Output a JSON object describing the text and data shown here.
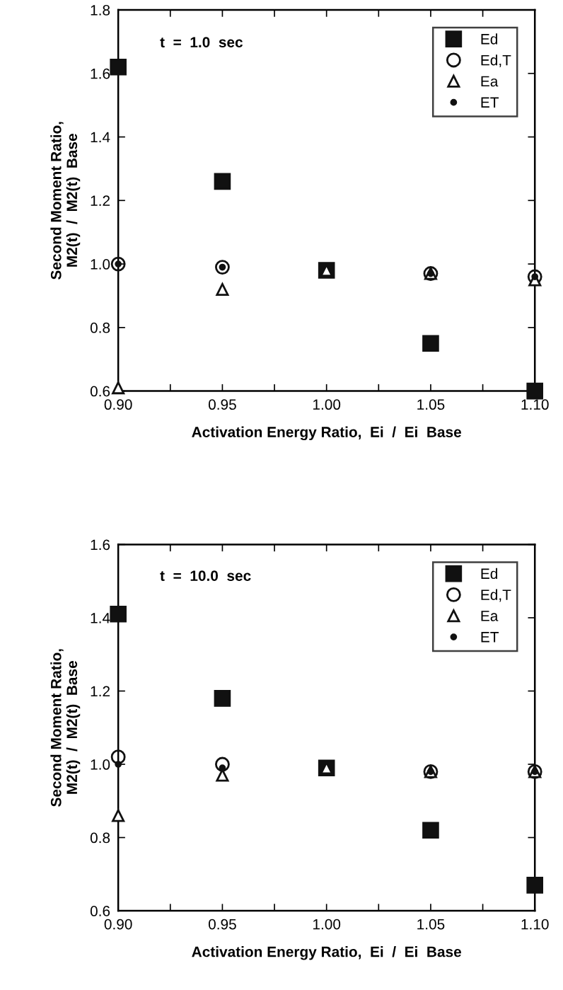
{
  "chart_data": [
    {
      "type": "scatter",
      "xlabel": "Activation Energy Ratio,  Ei  /  Ei  Base",
      "ylabel": "Second Moment Ratio,\nM2(t)  /  M2(t)  Base",
      "annotations": [
        "t  =  1.0  sec"
      ],
      "x": [
        0.9,
        0.95,
        1.0,
        1.05,
        1.1
      ],
      "xlim": [
        0.9,
        1.1
      ],
      "ylim": [
        0.6,
        1.8
      ],
      "xticks": [
        {
          "value": 0.9,
          "label": "0.90"
        },
        {
          "value": 0.925,
          "label": null
        },
        {
          "value": 0.95,
          "label": "0.95"
        },
        {
          "value": 0.975,
          "label": null
        },
        {
          "value": 1.0,
          "label": "1.00"
        },
        {
          "value": 1.025,
          "label": null
        },
        {
          "value": 1.05,
          "label": "1.05"
        },
        {
          "value": 1.075,
          "label": null
        },
        {
          "value": 1.1,
          "label": "1.10"
        }
      ],
      "yticks": [
        0.6,
        0.8,
        {
          "value": 1.0,
          "label": "1.0"
        },
        1.2,
        1.4,
        1.6,
        1.8
      ],
      "legend": "top right",
      "grid": false,
      "series": [
        {
          "name": "Ed",
          "color": "#111111",
          "marker": "square",
          "values": [
            1.62,
            1.26,
            0.98,
            0.75,
            0.6
          ]
        },
        {
          "name": "Ed,T",
          "color": "#111111",
          "marker": "circle",
          "values": [
            1.0,
            0.99,
            null,
            0.97,
            0.96
          ]
        },
        {
          "name": "Ea",
          "color": "#111111",
          "marker": "triangle",
          "values": [
            0.61,
            0.92,
            0.98,
            0.97,
            0.95
          ]
        },
        {
          "name": "ET",
          "color": "#111111",
          "marker": "dot",
          "values": [
            1.0,
            0.99,
            null,
            0.97,
            0.96
          ]
        }
      ]
    },
    {
      "type": "scatter",
      "xlabel": "Activation Energy Ratio,  Ei  /  Ei  Base",
      "ylabel": "Second Moment Ratio,\nM2(t)  /  M2(t)  Base",
      "annotations": [
        "t  =  10.0  sec"
      ],
      "x": [
        0.9,
        0.95,
        1.0,
        1.05,
        1.1
      ],
      "xlim": [
        0.9,
        1.1
      ],
      "ylim": [
        0.6,
        1.6
      ],
      "xticks": [
        {
          "value": 0.9,
          "label": "0.90"
        },
        {
          "value": 0.925,
          "label": null
        },
        {
          "value": 0.95,
          "label": "0.95"
        },
        {
          "value": 0.975,
          "label": null
        },
        {
          "value": 1.0,
          "label": "1.00"
        },
        {
          "value": 1.025,
          "label": null
        },
        {
          "value": 1.05,
          "label": "1.05"
        },
        {
          "value": 1.075,
          "label": null
        },
        {
          "value": 1.1,
          "label": "1.10"
        }
      ],
      "yticks": [
        0.6,
        0.8,
        {
          "value": 1.0,
          "label": "1.0"
        },
        1.2,
        1.4,
        1.6
      ],
      "legend": "top right",
      "grid": false,
      "series": [
        {
          "name": "Ed",
          "color": "#111111",
          "marker": "square",
          "values": [
            1.41,
            1.18,
            0.99,
            0.82,
            0.67
          ]
        },
        {
          "name": "Ed,T",
          "color": "#111111",
          "marker": "circle",
          "values": [
            1.02,
            1.0,
            null,
            0.98,
            0.98
          ]
        },
        {
          "name": "Ea",
          "color": "#111111",
          "marker": "triangle",
          "values": [
            0.86,
            0.97,
            0.99,
            0.98,
            0.98
          ]
        },
        {
          "name": "ET",
          "color": "#111111",
          "marker": "dot",
          "values": [
            1.0,
            0.99,
            null,
            0.98,
            0.98
          ]
        }
      ]
    }
  ]
}
